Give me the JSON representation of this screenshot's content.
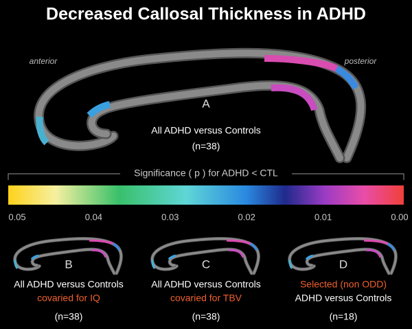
{
  "title": "Decreased Callosal Thickness in ADHD",
  "orientation": {
    "anterior": "anterior",
    "posterior": "posterior"
  },
  "main_panel": {
    "letter": "A",
    "lines": [
      "All ADHD versus Controls",
      "(n=38)"
    ]
  },
  "colorbar": {
    "label": "Significance ( p ) for ADHD < CTL",
    "ticks": [
      "0.05",
      "0.04",
      "0.03",
      "0.02",
      "0.01",
      "0.00"
    ]
  },
  "panels": [
    {
      "letter": "B",
      "lines": [
        "All ADHD versus Controls",
        "covaried for IQ",
        "(n=38)"
      ]
    },
    {
      "letter": "C",
      "lines": [
        "All ADHD versus Controls",
        "covaried for TBV",
        "(n=38)"
      ]
    },
    {
      "letter": "D",
      "lines": [
        "Selected (non ODD)",
        "ADHD versus Controls",
        "(n=18)"
      ]
    }
  ]
}
